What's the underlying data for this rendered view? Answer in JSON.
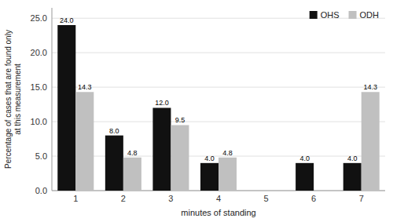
{
  "chart_data": {
    "type": "bar",
    "categories": [
      "1",
      "2",
      "3",
      "4",
      "5",
      "6",
      "7"
    ],
    "series": [
      {
        "name": "OHS",
        "color": "#111111",
        "values": [
          24.0,
          8.0,
          12.0,
          4.0,
          0.0,
          4.0,
          4.0
        ],
        "value_labels": [
          "24.0",
          "8.0",
          "12.0",
          "4.0",
          null,
          "4.0",
          "4.0"
        ]
      },
      {
        "name": "ODH",
        "color": "#c0c0c0",
        "values": [
          14.3,
          4.8,
          9.5,
          4.8,
          0.0,
          0.0,
          14.3
        ],
        "value_labels": [
          "14.3",
          "4.8",
          "9.5",
          "4.8",
          null,
          null,
          "14.3"
        ]
      }
    ],
    "x_label": "minutes of standing",
    "y_label": "Percentage of cases that are found only\nat this measurement",
    "ylim": [
      0,
      26.5
    ],
    "yticks": [
      {
        "value": 0.0,
        "label": "0.0"
      },
      {
        "value": 5.0,
        "label": "5.0"
      },
      {
        "value": 10.0,
        "label": "10.0"
      },
      {
        "value": 15.0,
        "label": "15.0"
      },
      {
        "value": 20.0,
        "label": "20.0"
      },
      {
        "value": 25.0,
        "label": "25.0"
      }
    ],
    "grid": true,
    "data_labels": true,
    "legend": "upper right"
  }
}
